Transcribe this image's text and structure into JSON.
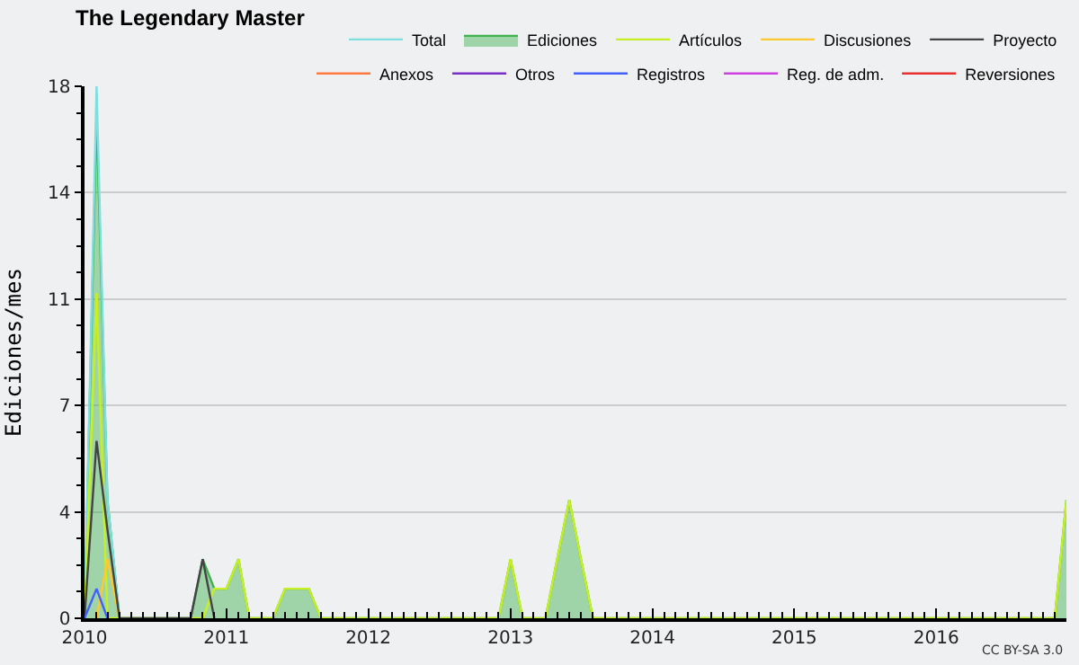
{
  "chart_data": {
    "type": "line",
    "title": "The Legendary Master",
    "ylabel": "Ediciones/mes",
    "xlim": [
      "2010-01",
      "2016-12"
    ],
    "xticks": [
      {
        "value": "2010-01",
        "label": "2010"
      },
      {
        "value": "2011-01",
        "label": "2011"
      },
      {
        "value": "2012-01",
        "label": "2012"
      },
      {
        "value": "2013-01",
        "label": "2013"
      },
      {
        "value": "2014-01",
        "label": "2014"
      },
      {
        "value": "2015-01",
        "label": "2015"
      },
      {
        "value": "2016-01",
        "label": "2016"
      }
    ],
    "ylim": [
      0,
      18
    ],
    "yticks": [
      0,
      {
        "value": 3.6,
        "label": "4"
      },
      {
        "value": 7.2,
        "label": "7"
      },
      {
        "value": 10.8,
        "label": "11"
      },
      {
        "value": 14.4,
        "label": "14"
      },
      18
    ],
    "grid": "y",
    "legend": "top right",
    "annotations": [
      "CC BY-SA 3.0"
    ],
    "series": [
      {
        "name": "Total",
        "color": "#7fdede",
        "x": [
          "2010-01",
          "2010-02",
          "2010-03",
          "2010-04"
        ],
        "values": [
          0,
          18,
          4,
          0
        ]
      },
      {
        "name": "Ediciones",
        "type": "area",
        "color": "#3fb24f",
        "x": [
          "2010-01",
          "2010-02",
          "2010-03",
          "2010-04",
          "2010-10",
          "2010-11",
          "2010-12",
          "2011-01",
          "2011-02",
          "2011-03",
          "2011-05",
          "2011-06",
          "2011-07",
          "2011-08",
          "2011-09",
          "2012-12",
          "2013-01",
          "2013-02",
          "2013-04",
          "2013-05",
          "2013-06",
          "2013-07",
          "2013-08",
          "2016-11",
          "2016-12"
        ],
        "values": [
          0,
          17,
          4,
          0,
          0,
          2,
          1,
          1,
          2,
          0,
          0,
          1,
          1,
          1,
          0,
          0,
          2,
          0,
          0,
          2,
          4,
          2,
          0,
          0,
          4
        ]
      },
      {
        "name": "Artículos",
        "color": "#c8f020",
        "x": [
          "2010-01",
          "2010-02",
          "2010-03",
          "2010-11",
          "2010-12",
          "2011-01",
          "2011-02",
          "2011-03",
          "2011-05",
          "2011-06",
          "2011-07",
          "2011-08",
          "2011-09",
          "2012-12",
          "2013-01",
          "2013-02",
          "2013-04",
          "2013-05",
          "2013-06",
          "2013-07",
          "2013-08",
          "2016-11",
          "2016-12"
        ],
        "values": [
          0,
          11,
          0,
          0,
          1,
          1,
          2,
          0,
          0,
          1,
          1,
          1,
          0,
          0,
          2,
          0,
          0,
          2,
          4,
          2,
          0,
          0,
          4
        ]
      },
      {
        "name": "Discusiones",
        "color": "#ffc830",
        "x": [
          "2010-02",
          "2010-03",
          "2010-04"
        ],
        "values": [
          0,
          2,
          0
        ]
      },
      {
        "name": "Proyecto",
        "color": "#444444",
        "x": [
          "2010-01",
          "2010-02",
          "2010-03",
          "2010-04",
          "2010-10",
          "2010-11",
          "2010-12"
        ],
        "values": [
          0,
          6,
          3,
          0,
          0,
          2,
          0
        ]
      },
      {
        "name": "Anexos",
        "color": "#ff7a40"
      },
      {
        "name": "Otros",
        "color": "#7a30c8"
      },
      {
        "name": "Registros",
        "color": "#4060ff",
        "x": [
          "2010-01",
          "2010-02",
          "2010-03"
        ],
        "values": [
          0,
          1,
          0
        ]
      },
      {
        "name": "Reg. de adm.",
        "color": "#d040e0"
      },
      {
        "name": "Reversiones",
        "color": "#e83030"
      }
    ]
  }
}
